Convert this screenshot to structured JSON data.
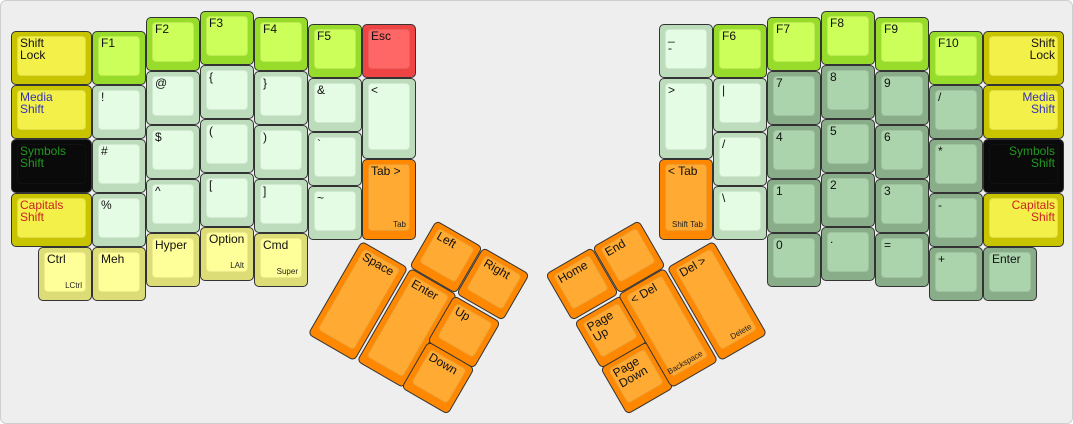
{
  "colors": {
    "shift": "#f4f04a",
    "function": "#ccff5a",
    "symbol": "#e4fce4",
    "numpad": "#acd4ac",
    "navigation": "#ffaa33",
    "escape": "#ff6666",
    "modifier": "#ffff99",
    "layer_dark": "#0a0a0a"
  },
  "keys": [
    {
      "label": "Shift\nLock",
      "style": "shift"
    },
    {
      "label": "Media\nShift",
      "style": "shift",
      "color": "media"
    },
    {
      "label": "Symbols\nShift",
      "style": "dark",
      "color": "sym"
    },
    {
      "label": "Capitals\nShift",
      "style": "shift",
      "color": "caps"
    },
    {
      "label": "Ctrl",
      "sub": "LCtrl",
      "style": "mod"
    },
    {
      "label": "F1",
      "style": "fn"
    },
    {
      "label": "!",
      "style": "sym"
    },
    {
      "label": "#",
      "style": "sym"
    },
    {
      "label": "%",
      "style": "sym"
    },
    {
      "label": "Meh",
      "style": "mod"
    },
    {
      "label": "F2",
      "style": "fn"
    },
    {
      "label": "@",
      "style": "sym"
    },
    {
      "label": "$",
      "style": "sym"
    },
    {
      "label": "^",
      "style": "sym"
    },
    {
      "label": "Hyper",
      "style": "mod"
    },
    {
      "label": "F3",
      "style": "fn"
    },
    {
      "label": "{",
      "style": "sym"
    },
    {
      "label": "(",
      "style": "sym"
    },
    {
      "label": "[",
      "style": "sym"
    },
    {
      "label": "Option",
      "sub": "LAlt",
      "style": "mod"
    },
    {
      "label": "F4",
      "style": "fn"
    },
    {
      "label": "}",
      "style": "sym"
    },
    {
      "label": ")",
      "style": "sym"
    },
    {
      "label": "]",
      "style": "sym"
    },
    {
      "label": "Cmd",
      "sub": "Super",
      "style": "mod"
    },
    {
      "label": "F5",
      "style": "fn"
    },
    {
      "label": "&",
      "style": "sym"
    },
    {
      "label": "`",
      "style": "sym"
    },
    {
      "label": "~",
      "style": "sym"
    },
    {
      "label": "Esc",
      "style": "esc"
    },
    {
      "label": "<",
      "style": "sym"
    },
    {
      "label": "Tab >",
      "sub": "Tab",
      "style": "nav"
    },
    {
      "label": "Space",
      "style": "nav"
    },
    {
      "label": "Enter",
      "style": "nav"
    },
    {
      "label": "Left",
      "style": "nav"
    },
    {
      "label": "Right",
      "style": "nav"
    },
    {
      "label": "Up",
      "style": "nav"
    },
    {
      "label": "Down",
      "style": "nav"
    },
    {
      "label": "_\n-",
      "style": "sym"
    },
    {
      "label": ">",
      "style": "sym"
    },
    {
      "label": "< Tab",
      "sub": "Shift Tab",
      "style": "nav"
    },
    {
      "label": "F6",
      "style": "fn"
    },
    {
      "label": "|",
      "style": "sym"
    },
    {
      "label": "/",
      "style": "sym"
    },
    {
      "label": "\\",
      "style": "sym"
    },
    {
      "label": "F7",
      "style": "fn"
    },
    {
      "label": "7",
      "style": "num"
    },
    {
      "label": "4",
      "style": "num"
    },
    {
      "label": "1",
      "style": "num"
    },
    {
      "label": "0",
      "style": "num"
    },
    {
      "label": "F8",
      "style": "fn"
    },
    {
      "label": "8",
      "style": "num"
    },
    {
      "label": "5",
      "style": "num"
    },
    {
      "label": "2",
      "style": "num"
    },
    {
      "label": ".",
      "style": "num"
    },
    {
      "label": "F9",
      "style": "fn"
    },
    {
      "label": "9",
      "style": "num"
    },
    {
      "label": "6",
      "style": "num"
    },
    {
      "label": "3",
      "style": "num"
    },
    {
      "label": "=",
      "style": "num"
    },
    {
      "label": "F10",
      "style": "fn"
    },
    {
      "label": "/",
      "style": "num"
    },
    {
      "label": "*",
      "style": "num"
    },
    {
      "label": "-",
      "style": "num"
    },
    {
      "label": "+",
      "style": "num"
    },
    {
      "label": "Shift\nLock",
      "style": "shift"
    },
    {
      "label": "Media\nShift",
      "style": "shift",
      "color": "media"
    },
    {
      "label": "Symbols\nShift",
      "style": "dark",
      "color": "sym"
    },
    {
      "label": "Capitals\nShift",
      "style": "shift",
      "color": "caps"
    },
    {
      "label": "Enter",
      "style": "num"
    },
    {
      "label": "Home",
      "style": "nav"
    },
    {
      "label": "End",
      "style": "nav"
    },
    {
      "label": "Page\nUp",
      "style": "nav"
    },
    {
      "label": "Page\nDown",
      "style": "nav"
    },
    {
      "label": "< Del",
      "sub": "Backspace",
      "style": "nav"
    },
    {
      "label": "Del >",
      "sub": "Delete",
      "style": "nav"
    }
  ]
}
